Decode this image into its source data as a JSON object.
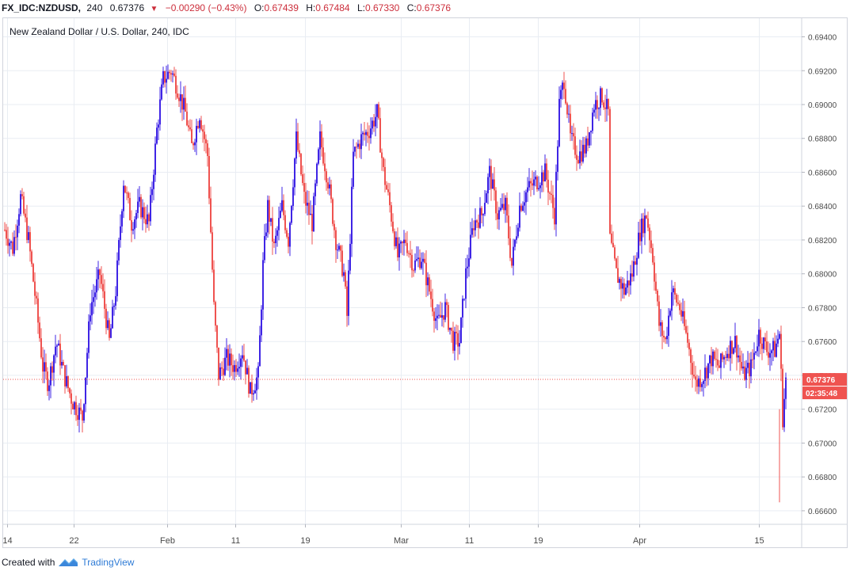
{
  "header": {
    "symbol": "FX_IDC:NZDUSD,",
    "timeframe": "240",
    "last": "0.67376",
    "change": "−0.00290 (−0.43%)",
    "o_label": "O:",
    "o_value": "0.67439",
    "h_label": "H:",
    "h_value": "0.67484",
    "l_label": "L:",
    "l_value": "0.67330",
    "c_label": "C:",
    "c_value": "0.67376"
  },
  "footer": {
    "created_with": "Created with",
    "brand": "TradingView"
  },
  "colors": {
    "up": "#3f25e5",
    "down": "#ef5350",
    "price_tag": "#ef5350",
    "grid": "#e9edf3"
  },
  "chart_data": {
    "type": "candlestick",
    "title": "New Zealand Dollar / U.S. Dollar, 240, IDC",
    "ylim": [
      0.6652,
      0.6951
    ],
    "y_ticks": [
      "0.69400",
      "0.69200",
      "0.69000",
      "0.68800",
      "0.68600",
      "0.68400",
      "0.68200",
      "0.68000",
      "0.67800",
      "0.67600",
      "0.67400",
      "0.67200",
      "0.67000",
      "0.66800",
      "0.66600"
    ],
    "x_ticks": [
      "14",
      "22",
      "Feb",
      "11",
      "19",
      "Mar",
      "11",
      "19",
      "Apr",
      "15"
    ],
    "price_label": "0.67376",
    "countdown_label": "02:35:48",
    "grid": true,
    "series_close": [
      [
        0,
        0.6826
      ],
      [
        10,
        0.6815
      ],
      [
        20,
        0.6845
      ],
      [
        30,
        0.682
      ],
      [
        40,
        0.678
      ],
      [
        48,
        0.6745
      ],
      [
        55,
        0.6735
      ],
      [
        65,
        0.676
      ],
      [
        75,
        0.674
      ],
      [
        85,
        0.6725
      ],
      [
        98,
        0.6715
      ],
      [
        108,
        0.678
      ],
      [
        120,
        0.68
      ],
      [
        132,
        0.676
      ],
      [
        140,
        0.679
      ],
      [
        150,
        0.6855
      ],
      [
        160,
        0.683
      ],
      [
        170,
        0.684
      ],
      [
        182,
        0.683
      ],
      [
        192,
        0.6885
      ],
      [
        200,
        0.6915
      ],
      [
        210,
        0.692
      ],
      [
        218,
        0.691
      ],
      [
        228,
        0.6895
      ],
      [
        236,
        0.6875
      ],
      [
        246,
        0.6895
      ],
      [
        256,
        0.687
      ],
      [
        264,
        0.678
      ],
      [
        270,
        0.674
      ],
      [
        280,
        0.675
      ],
      [
        290,
        0.6745
      ],
      [
        300,
        0.6755
      ],
      [
        310,
        0.673
      ],
      [
        320,
        0.674
      ],
      [
        326,
        0.6805
      ],
      [
        332,
        0.684
      ],
      [
        340,
        0.6815
      ],
      [
        350,
        0.684
      ],
      [
        358,
        0.682
      ],
      [
        368,
        0.688
      ],
      [
        378,
        0.6845
      ],
      [
        388,
        0.683
      ],
      [
        398,
        0.688
      ],
      [
        408,
        0.6855
      ],
      [
        418,
        0.682
      ],
      [
        428,
        0.68
      ],
      [
        432,
        0.6775
      ],
      [
        440,
        0.687
      ],
      [
        450,
        0.688
      ],
      [
        460,
        0.6885
      ],
      [
        470,
        0.6895
      ],
      [
        478,
        0.686
      ],
      [
        486,
        0.684
      ],
      [
        496,
        0.681
      ],
      [
        506,
        0.682
      ],
      [
        516,
        0.6805
      ],
      [
        526,
        0.681
      ],
      [
        536,
        0.679
      ],
      [
        546,
        0.677
      ],
      [
        556,
        0.678
      ],
      [
        566,
        0.676
      ],
      [
        574,
        0.676
      ],
      [
        582,
        0.68
      ],
      [
        592,
        0.683
      ],
      [
        602,
        0.6835
      ],
      [
        612,
        0.686
      ],
      [
        622,
        0.6835
      ],
      [
        632,
        0.684
      ],
      [
        640,
        0.6805
      ],
      [
        650,
        0.684
      ],
      [
        660,
        0.685
      ],
      [
        672,
        0.6855
      ],
      [
        682,
        0.686
      ],
      [
        694,
        0.6835
      ],
      [
        700,
        0.69
      ],
      [
        706,
        0.6915
      ],
      [
        714,
        0.688
      ],
      [
        724,
        0.687
      ],
      [
        734,
        0.6875
      ],
      [
        744,
        0.69
      ],
      [
        754,
        0.6905
      ],
      [
        762,
        0.6895
      ],
      [
        764,
        0.682
      ],
      [
        772,
        0.68
      ],
      [
        782,
        0.679
      ],
      [
        792,
        0.68
      ],
      [
        802,
        0.6825
      ],
      [
        810,
        0.6835
      ],
      [
        818,
        0.681
      ],
      [
        826,
        0.677
      ],
      [
        834,
        0.676
      ],
      [
        842,
        0.679
      ],
      [
        852,
        0.678
      ],
      [
        862,
        0.676
      ],
      [
        872,
        0.6735
      ],
      [
        882,
        0.674
      ],
      [
        892,
        0.675
      ],
      [
        902,
        0.6745
      ],
      [
        912,
        0.6755
      ],
      [
        922,
        0.676
      ],
      [
        932,
        0.674
      ],
      [
        942,
        0.6745
      ],
      [
        952,
        0.6765
      ],
      [
        962,
        0.6755
      ],
      [
        972,
        0.6755
      ],
      [
        978,
        0.6765
      ],
      [
        982,
        0.6715
      ],
      [
        986,
        0.67376
      ]
    ]
  }
}
